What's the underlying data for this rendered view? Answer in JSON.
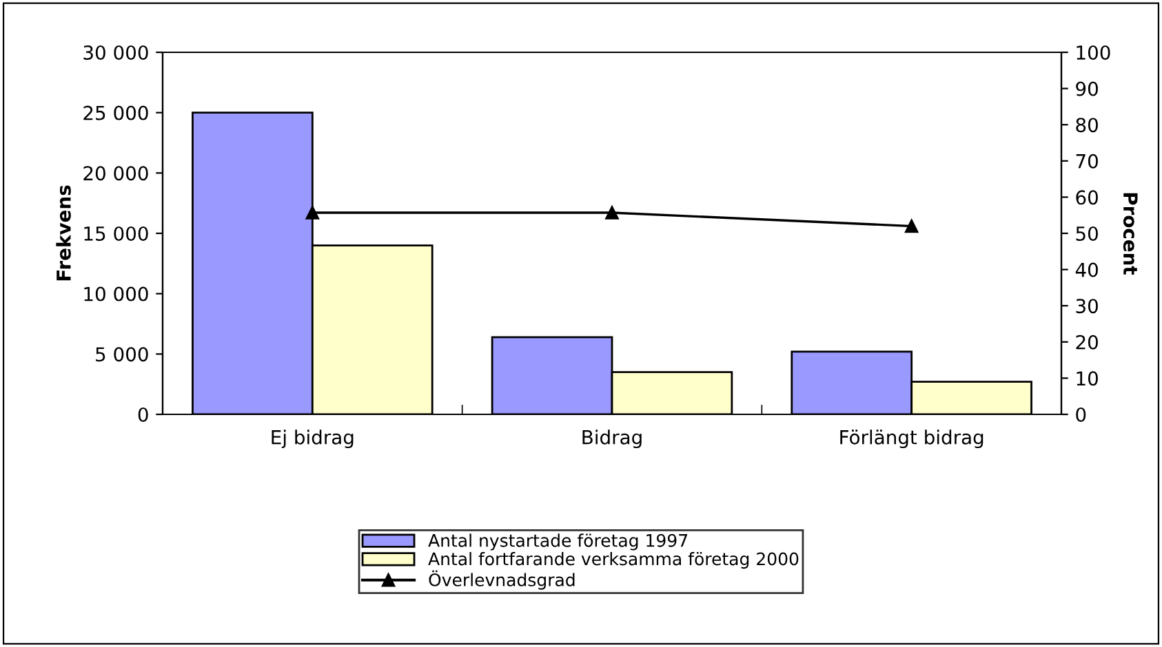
{
  "chart_data": {
    "type": "bar",
    "categories": [
      "Ej bidrag",
      "Bidrag",
      "Förlängt bidrag"
    ],
    "ylabel": "Frekvens",
    "y2label": "Procent",
    "series": [
      {
        "name": "Antal nystartade företag 1997",
        "color": "#9999ff",
        "values": [
          25000,
          6400,
          5200
        ]
      },
      {
        "name": "Antal fortfarande verksamma företag 2000",
        "color": "#ffffcc",
        "values": [
          14000,
          3500,
          2700
        ]
      },
      {
        "name": "Överlevnadsgrad",
        "type": "line",
        "axis": "y2",
        "color": "#000000",
        "marker": "triangle",
        "values": [
          55.7,
          55.7,
          52
        ]
      }
    ],
    "ylim": [
      0,
      30000
    ],
    "yticks": [
      {
        "value": 0,
        "label": "0"
      },
      {
        "value": 5000,
        "label": "5 000"
      },
      {
        "value": 10000,
        "label": "10 000"
      },
      {
        "value": 15000,
        "label": "15 000"
      },
      {
        "value": 20000,
        "label": "20 000"
      },
      {
        "value": 25000,
        "label": "25 000"
      },
      {
        "value": 30000,
        "label": "30 000"
      }
    ],
    "y2lim": [
      0,
      100
    ],
    "y2ticks": [
      0,
      10,
      20,
      30,
      40,
      50,
      60,
      70,
      80,
      90,
      100
    ],
    "legend": "bottom",
    "grid": false
  }
}
